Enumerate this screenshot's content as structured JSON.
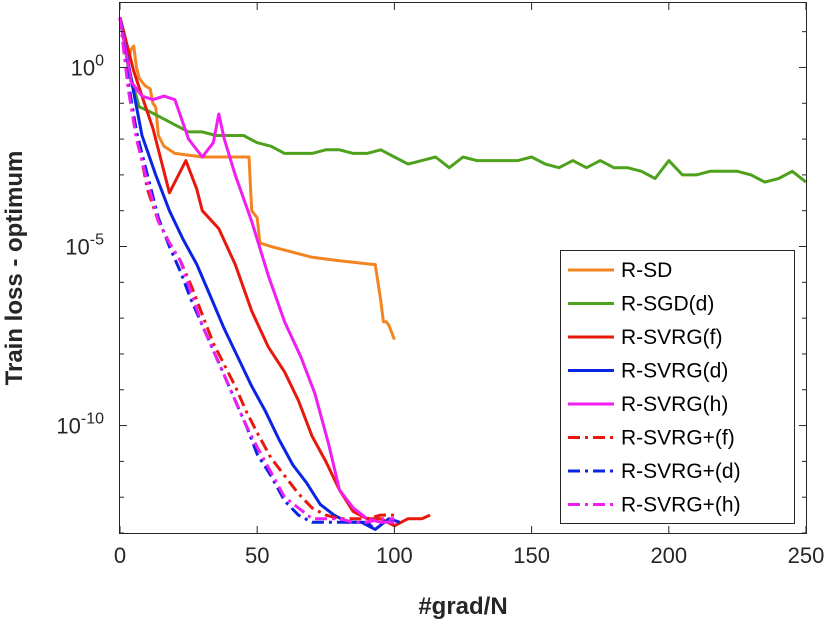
{
  "chart_data": {
    "type": "line",
    "xlabel": "#grad/N",
    "ylabel": "Train loss - optimum",
    "xlim": [
      0,
      250
    ],
    "ylim_log10": [
      -13,
      1.8
    ],
    "yscale": "log",
    "x_ticks": [
      "0",
      "50",
      "100",
      "150",
      "200",
      "250"
    ],
    "y_ticks": [
      {
        "base": "10",
        "exp": "0",
        "value": 0
      },
      {
        "base": "10",
        "exp": "-5",
        "value": -5
      },
      {
        "base": "10",
        "exp": "-10",
        "value": -10
      }
    ],
    "grid": false,
    "legend_position": "bottom-right",
    "series": [
      {
        "name": "R-SD",
        "color": "#f28522",
        "dash": "solid",
        "points": [
          [
            0,
            1.4
          ],
          [
            2,
            0.8
          ],
          [
            3,
            0.2
          ],
          [
            4,
            0.5
          ],
          [
            5,
            0.6
          ],
          [
            6,
            0
          ],
          [
            7,
            -0.3
          ],
          [
            9,
            -0.5
          ],
          [
            11,
            -0.6
          ],
          [
            12,
            -1.0
          ],
          [
            13,
            -1.1
          ],
          [
            14,
            -1.9
          ],
          [
            16,
            -2.2
          ],
          [
            20,
            -2.4
          ],
          [
            30,
            -2.5
          ],
          [
            47,
            -2.5
          ],
          [
            48,
            -4.0
          ],
          [
            50,
            -4.2
          ],
          [
            51,
            -4.9
          ],
          [
            55,
            -5.0
          ],
          [
            60,
            -5.1
          ],
          [
            70,
            -5.3
          ],
          [
            80,
            -5.4
          ],
          [
            92,
            -5.5
          ],
          [
            93,
            -5.5
          ],
          [
            95,
            -6.5
          ],
          [
            96,
            -7.1
          ],
          [
            97,
            -7.1
          ],
          [
            98,
            -7.2
          ],
          [
            99,
            -7.4
          ],
          [
            100,
            -7.6
          ]
        ]
      },
      {
        "name": "R-SGD(d)",
        "color": "#4da11d",
        "dash": "solid",
        "points": [
          [
            0,
            1.4
          ],
          [
            3,
            0
          ],
          [
            7,
            -1.1
          ],
          [
            10,
            -1.2
          ],
          [
            15,
            -1.4
          ],
          [
            20,
            -1.6
          ],
          [
            25,
            -1.8
          ],
          [
            30,
            -1.8
          ],
          [
            35,
            -1.9
          ],
          [
            40,
            -1.9
          ],
          [
            45,
            -1.9
          ],
          [
            50,
            -2.1
          ],
          [
            55,
            -2.2
          ],
          [
            60,
            -2.4
          ],
          [
            65,
            -2.4
          ],
          [
            70,
            -2.4
          ],
          [
            75,
            -2.3
          ],
          [
            80,
            -2.3
          ],
          [
            85,
            -2.4
          ],
          [
            90,
            -2.4
          ],
          [
            95,
            -2.3
          ],
          [
            100,
            -2.5
          ],
          [
            105,
            -2.7
          ],
          [
            110,
            -2.6
          ],
          [
            115,
            -2.5
          ],
          [
            120,
            -2.8
          ],
          [
            125,
            -2.5
          ],
          [
            130,
            -2.6
          ],
          [
            135,
            -2.6
          ],
          [
            140,
            -2.6
          ],
          [
            145,
            -2.6
          ],
          [
            150,
            -2.5
          ],
          [
            155,
            -2.7
          ],
          [
            160,
            -2.8
          ],
          [
            165,
            -2.6
          ],
          [
            170,
            -2.8
          ],
          [
            175,
            -2.6
          ],
          [
            180,
            -2.8
          ],
          [
            185,
            -2.8
          ],
          [
            190,
            -2.9
          ],
          [
            195,
            -3.1
          ],
          [
            200,
            -2.6
          ],
          [
            205,
            -3.0
          ],
          [
            210,
            -3.0
          ],
          [
            215,
            -2.9
          ],
          [
            220,
            -2.9
          ],
          [
            225,
            -2.9
          ],
          [
            230,
            -3.0
          ],
          [
            235,
            -3.2
          ],
          [
            240,
            -3.1
          ],
          [
            245,
            -2.9
          ],
          [
            250,
            -3.2
          ]
        ]
      },
      {
        "name": "R-SVRG(f)",
        "color": "#e8190c",
        "dash": "solid",
        "points": [
          [
            0,
            1.4
          ],
          [
            5,
            -0.1
          ],
          [
            8,
            -0.8
          ],
          [
            12,
            -1.7
          ],
          [
            18,
            -3.5
          ],
          [
            24,
            -2.6
          ],
          [
            28,
            -3.4
          ],
          [
            30,
            -4.0
          ],
          [
            36,
            -4.5
          ],
          [
            42,
            -5.5
          ],
          [
            48,
            -6.8
          ],
          [
            54,
            -7.8
          ],
          [
            60,
            -8.5
          ],
          [
            65,
            -9.3
          ],
          [
            70,
            -10.3
          ],
          [
            75,
            -11.0
          ],
          [
            80,
            -11.8
          ],
          [
            85,
            -12.4
          ],
          [
            90,
            -12.6
          ],
          [
            95,
            -12.6
          ],
          [
            100,
            -12.8
          ],
          [
            105,
            -12.6
          ],
          [
            110,
            -12.6
          ],
          [
            113,
            -12.5
          ]
        ]
      },
      {
        "name": "R-SVRG(d)",
        "color": "#0a24e6",
        "dash": "solid",
        "points": [
          [
            0,
            1.4
          ],
          [
            4,
            -0.3
          ],
          [
            8,
            -1.9
          ],
          [
            13,
            -3.0
          ],
          [
            18,
            -4.0
          ],
          [
            23,
            -4.8
          ],
          [
            28,
            -5.5
          ],
          [
            33,
            -6.4
          ],
          [
            38,
            -7.3
          ],
          [
            43,
            -8.1
          ],
          [
            48,
            -8.9
          ],
          [
            53,
            -9.6
          ],
          [
            58,
            -10.4
          ],
          [
            63,
            -11.1
          ],
          [
            68,
            -11.6
          ],
          [
            73,
            -12.2
          ],
          [
            78,
            -12.5
          ],
          [
            83,
            -12.7
          ],
          [
            88,
            -12.7
          ],
          [
            93,
            -12.9
          ],
          [
            98,
            -12.6
          ],
          [
            102,
            -12.7
          ]
        ]
      },
      {
        "name": "R-SVRG(h)",
        "color": "#f01ef0",
        "dash": "solid",
        "points": [
          [
            0,
            1.4
          ],
          [
            4,
            -0.4
          ],
          [
            8,
            -0.8
          ],
          [
            12,
            -0.9
          ],
          [
            16,
            -0.8
          ],
          [
            20,
            -0.9
          ],
          [
            25,
            -2.0
          ],
          [
            30,
            -2.5
          ],
          [
            34,
            -2.1
          ],
          [
            36,
            -1.3
          ],
          [
            38,
            -2.0
          ],
          [
            42,
            -3.0
          ],
          [
            48,
            -4.3
          ],
          [
            54,
            -5.8
          ],
          [
            60,
            -7.1
          ],
          [
            66,
            -8.1
          ],
          [
            71,
            -9.1
          ],
          [
            76,
            -10.5
          ],
          [
            80,
            -11.8
          ],
          [
            85,
            -12.3
          ],
          [
            90,
            -12.6
          ],
          [
            95,
            -12.7
          ],
          [
            100,
            -12.7
          ]
        ]
      },
      {
        "name": "R-SVRG+(f)",
        "color": "#e8190c",
        "dash": "dashdot",
        "points": [
          [
            0,
            1.4
          ],
          [
            3,
            -0.5
          ],
          [
            6,
            -1.8
          ],
          [
            10,
            -3.4
          ],
          [
            14,
            -4.3
          ],
          [
            18,
            -4.9
          ],
          [
            22,
            -5.4
          ],
          [
            26,
            -6.1
          ],
          [
            30,
            -6.9
          ],
          [
            34,
            -7.7
          ],
          [
            38,
            -8.3
          ],
          [
            42,
            -8.9
          ],
          [
            46,
            -9.6
          ],
          [
            50,
            -10.2
          ],
          [
            55,
            -10.9
          ],
          [
            60,
            -11.4
          ],
          [
            65,
            -11.9
          ],
          [
            70,
            -12.3
          ],
          [
            75,
            -12.5
          ],
          [
            80,
            -12.6
          ],
          [
            85,
            -12.6
          ],
          [
            90,
            -12.6
          ],
          [
            95,
            -12.5
          ],
          [
            100,
            -12.5
          ]
        ]
      },
      {
        "name": "R-SVRG+(d)",
        "color": "#0a24e6",
        "dash": "dashdot",
        "points": [
          [
            0,
            1.4
          ],
          [
            3,
            -0.4
          ],
          [
            6,
            -1.8
          ],
          [
            10,
            -3.0
          ],
          [
            14,
            -4.2
          ],
          [
            18,
            -5.0
          ],
          [
            22,
            -5.7
          ],
          [
            26,
            -6.5
          ],
          [
            30,
            -7.2
          ],
          [
            34,
            -7.9
          ],
          [
            38,
            -8.6
          ],
          [
            42,
            -9.3
          ],
          [
            46,
            -10.0
          ],
          [
            50,
            -10.8
          ],
          [
            55,
            -11.4
          ],
          [
            60,
            -12.1
          ],
          [
            65,
            -12.5
          ],
          [
            70,
            -12.7
          ],
          [
            75,
            -12.7
          ],
          [
            80,
            -12.7
          ],
          [
            85,
            -12.7
          ],
          [
            90,
            -12.7
          ],
          [
            93,
            -12.9
          ]
        ]
      },
      {
        "name": "R-SVRG+(h)",
        "color": "#f01ef0",
        "dash": "dashdot",
        "points": [
          [
            0,
            1.4
          ],
          [
            3,
            -0.6
          ],
          [
            6,
            -2.0
          ],
          [
            10,
            -3.2
          ],
          [
            14,
            -4.3
          ],
          [
            18,
            -4.9
          ],
          [
            22,
            -5.4
          ],
          [
            26,
            -6.3
          ],
          [
            30,
            -7.2
          ],
          [
            34,
            -7.9
          ],
          [
            38,
            -8.6
          ],
          [
            42,
            -9.3
          ],
          [
            46,
            -10.0
          ],
          [
            50,
            -10.6
          ],
          [
            55,
            -11.3
          ],
          [
            60,
            -12.0
          ],
          [
            65,
            -12.3
          ],
          [
            70,
            -12.6
          ],
          [
            75,
            -12.6
          ],
          [
            80,
            -12.6
          ],
          [
            85,
            -12.7
          ],
          [
            90,
            -12.7
          ],
          [
            95,
            -12.6
          ],
          [
            100,
            -12.6
          ]
        ]
      }
    ]
  }
}
